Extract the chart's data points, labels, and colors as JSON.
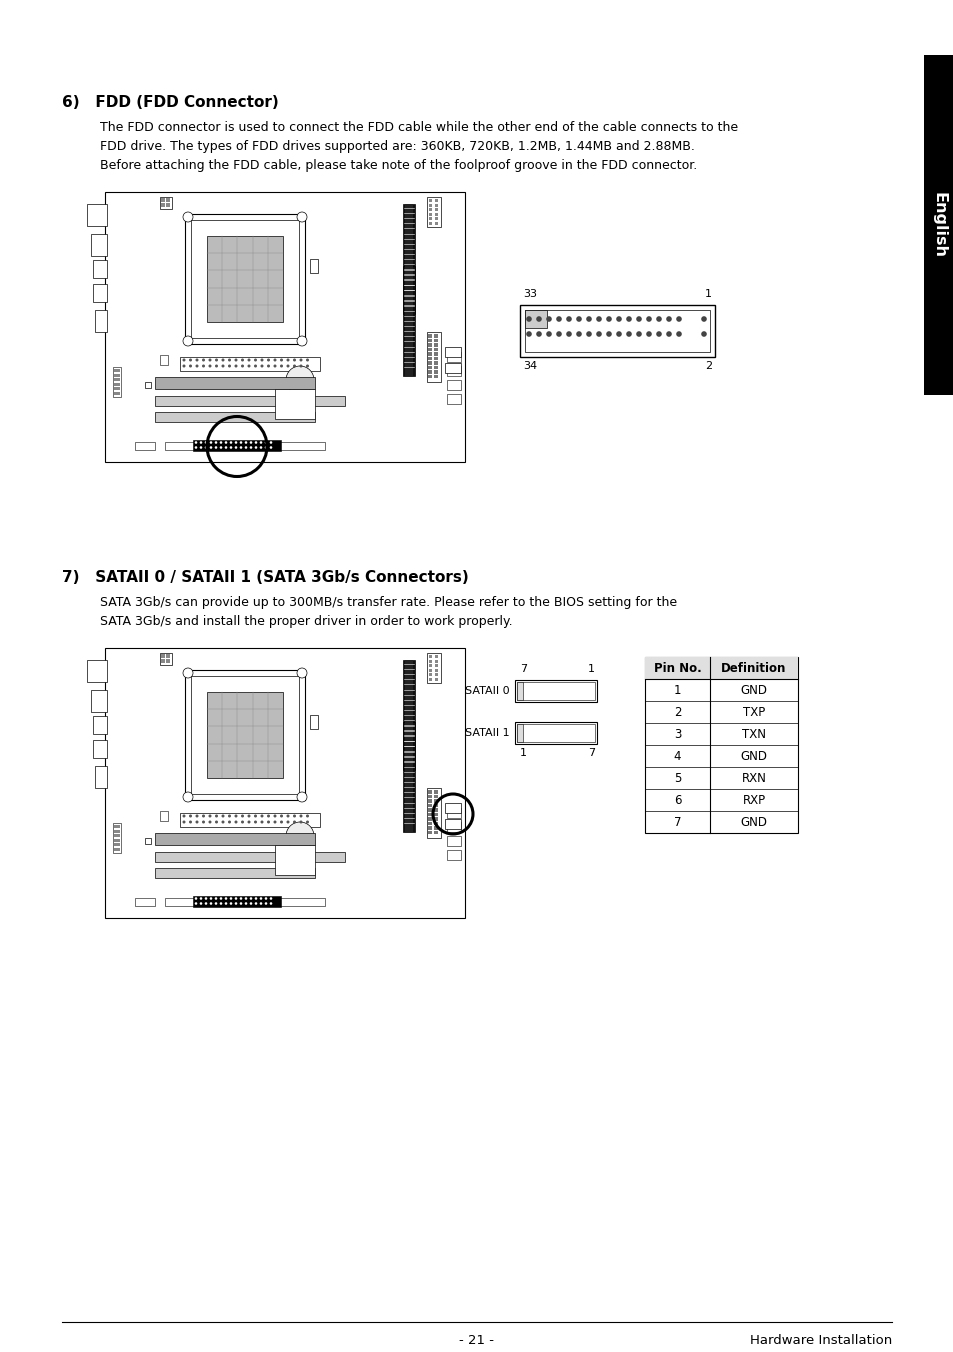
{
  "bg_color": "#ffffff",
  "section6_title": "6)   FDD (FDD Connector)",
  "section6_body": [
    "The FDD connector is used to connect the FDD cable while the other end of the cable connects to the",
    "FDD drive. The types of FDD drives supported are: 360KB, 720KB, 1.2MB, 1.44MB and 2.88MB.",
    "Before attaching the FDD cable, please take note of the foolproof groove in the FDD connector."
  ],
  "section7_title": "7)   SATAII 0 / SATAII 1 (SATA 3Gb/s Connectors)",
  "section7_body": [
    "SATA 3Gb/s can provide up to 300MB/s transfer rate. Please refer to the BIOS setting for the",
    "SATA 3Gb/s and install the proper driver in order to work properly."
  ],
  "footer_left": "- 21 -",
  "footer_right": "Hardware Installation",
  "sidebar_text": "English",
  "fdd_labels": [
    "33",
    "1",
    "34",
    "2"
  ],
  "sata_labels": [
    "SATAII 0",
    "SATAII 1"
  ],
  "sata_nums_top": [
    "7",
    "1"
  ],
  "sata_nums_bot": [
    "1",
    "7"
  ],
  "pin_table_headers": [
    "Pin No.",
    "Definition"
  ],
  "pin_table_rows": [
    [
      "1",
      "GND"
    ],
    [
      "2",
      "TXP"
    ],
    [
      "3",
      "TXN"
    ],
    [
      "4",
      "GND"
    ],
    [
      "5",
      "RXN"
    ],
    [
      "6",
      "RXP"
    ],
    [
      "7",
      "GND"
    ]
  ]
}
